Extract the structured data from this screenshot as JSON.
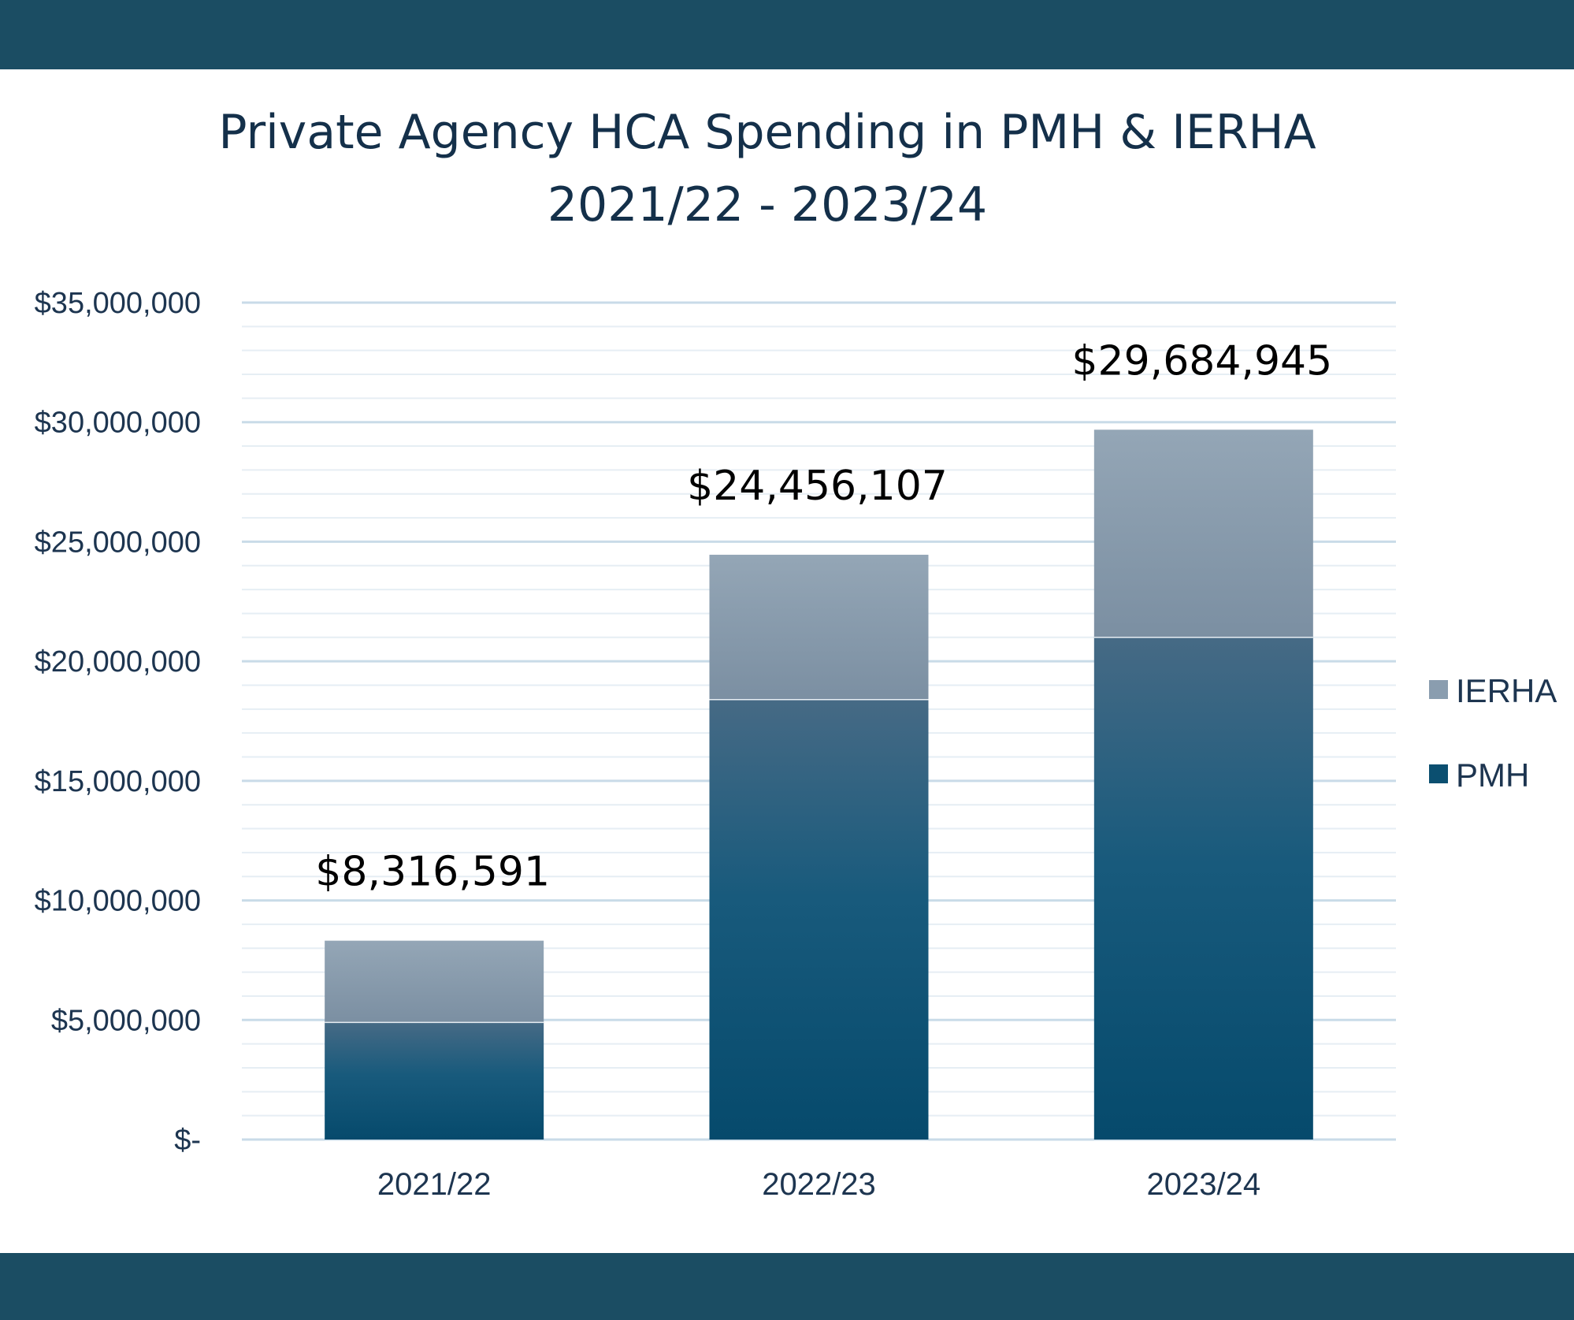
{
  "chart_data": {
    "type": "bar",
    "stacked": true,
    "title": "Private Agency HCA Spending in PMH & IERHA",
    "subtitle": "2021/22 - 2023/24",
    "categories": [
      "2021/22",
      "2022/23",
      "2023/24"
    ],
    "series": [
      {
        "name": "PMH",
        "values": [
          4900000,
          18400000,
          21000000
        ],
        "color": "#0b4f70"
      },
      {
        "name": "IERHA",
        "values": [
          3416591,
          6056107,
          8684945
        ],
        "color": "#8fa3b4"
      }
    ],
    "totals": [
      8316591,
      24456107,
      29684945
    ],
    "total_labels": [
      "$8,316,591",
      "$24,456,107",
      "$29,684,945"
    ],
    "ylim": [
      0,
      35000000
    ],
    "y_ticks": [
      0,
      5000000,
      10000000,
      15000000,
      20000000,
      25000000,
      30000000,
      35000000
    ],
    "y_tick_labels": [
      "$-",
      "$5,000,000",
      "$10,000,000",
      "$15,000,000",
      "$20,000,000",
      "$25,000,000",
      "$30,000,000",
      "$35,000,000"
    ],
    "xlabel": "",
    "ylabel": "",
    "grid": true,
    "legend": {
      "position": "right",
      "items": [
        "IERHA",
        "PMH"
      ]
    }
  }
}
